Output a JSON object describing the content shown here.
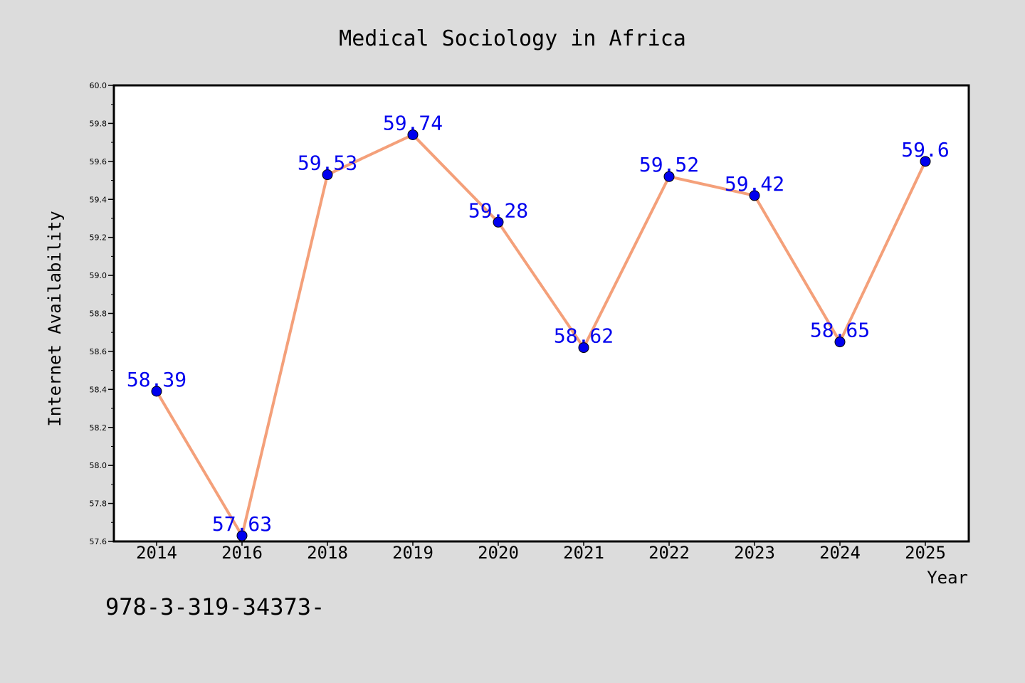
{
  "chart_data": {
    "type": "line",
    "title": "Medical Sociology in Africa",
    "xlabel": "Year",
    "ylabel": "Internet Availability",
    "categories": [
      "2014",
      "2016",
      "2018",
      "2019",
      "2020",
      "2021",
      "2022",
      "2023",
      "2024",
      "2025"
    ],
    "series": [
      {
        "values": [
          58.39,
          57.63,
          59.53,
          59.74,
          59.28,
          58.62,
          59.52,
          59.42,
          58.65,
          59.6
        ],
        "data_labels": [
          "58.39",
          "57.63",
          "59.53",
          "59.74",
          "59.28",
          "58.62",
          "59.52",
          "59.42",
          "58.65",
          "59.6"
        ],
        "line_color": "#f4a07a",
        "marker_color": "#0000ee",
        "label_color": "#0000ee"
      }
    ],
    "ylim": [
      57.6,
      60.0
    ],
    "yticks": [
      "57.6",
      "57.8",
      "58.0",
      "58.2",
      "58.4",
      "58.6",
      "58.8",
      "59.0",
      "59.2",
      "59.4",
      "59.6",
      "59.8",
      "60.0"
    ],
    "grid": false,
    "legend": "none"
  },
  "annotation": "978-3-319-34373-",
  "colors": {
    "background": "#dcdcdc",
    "plot_area": "#ffffff",
    "axis": "#000000"
  }
}
